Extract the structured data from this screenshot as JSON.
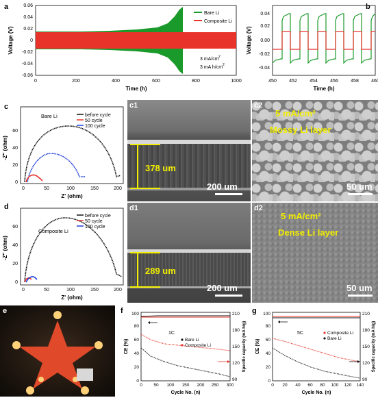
{
  "labels": {
    "a": "a",
    "b": "b",
    "c": "c",
    "c1": "c1",
    "c2": "c2",
    "d": "d",
    "d1": "d1",
    "d2": "d2",
    "e": "e",
    "f": "f",
    "g": "g"
  },
  "panel_a": {
    "ylabel": "Voltage (V)",
    "xlabel": "Time (h)",
    "yticks": [
      "0.06",
      "0.04",
      "0.02",
      "0",
      "-0.02",
      "-0.04",
      "-0.06"
    ],
    "xticks": [
      "0",
      "200",
      "400",
      "600",
      "800",
      "1000"
    ],
    "legend": [
      "Bare Li",
      "Composite Li"
    ],
    "note1": "3 mA/cm",
    "note1_sup": "2",
    "note2": "3 mA h/cm",
    "note2_sup": "2"
  },
  "panel_b": {
    "ylabel": "Voltage (V)",
    "xlabel": "Time (h)",
    "yticks": [
      "0.04",
      "0.02",
      "0.00",
      "-0.02",
      "-0.04"
    ],
    "xticks": [
      "450",
      "452",
      "454",
      "456",
      "458",
      "460"
    ]
  },
  "panel_c": {
    "ylabel": "-Z'' (ohm)",
    "xlabel": "Z' (ohm)",
    "title": "Bare Li",
    "yticks": [
      "0",
      "20",
      "40",
      "60"
    ],
    "xticks": [
      "0",
      "50",
      "100",
      "150",
      "200"
    ],
    "legend": [
      "before cycle",
      "50 cycle",
      "100 cycle"
    ]
  },
  "panel_d": {
    "ylabel": "-Z'' (ohm)",
    "xlabel": "Z' (ohm)",
    "title": "Composite Li",
    "yticks": [
      "0",
      "20",
      "40",
      "60"
    ],
    "xticks": [
      "0",
      "50",
      "100",
      "150",
      "200"
    ],
    "legend": [
      "before cycle",
      "50 cycle",
      "100 cycle"
    ]
  },
  "sem": {
    "c1_thickness": "378 um",
    "c1_scale": "200 um",
    "c2_text1": "5 mA/cm²",
    "c2_text2": "Mossy Li layer",
    "c2_scale": "50 um",
    "d1_thickness": "289 um",
    "d1_scale": "200 um",
    "d2_text1": "5 mA/cm²",
    "d2_text2": "Dense Li layer",
    "d2_scale": "50 um"
  },
  "panel_f": {
    "ylabel": "CE (%)",
    "ylabel2": "Specific capacity (mA h/g)",
    "xlabel": "Cycle No. (n)",
    "rate": "1C",
    "yticks": [
      "0",
      "20",
      "40",
      "60",
      "80",
      "100"
    ],
    "y2ticks": [
      "210",
      "180",
      "150",
      "120",
      "90"
    ],
    "xticks": [
      "0",
      "50",
      "100",
      "150",
      "200",
      "250",
      "300"
    ],
    "legend": [
      "Bare Li",
      "Composite Li"
    ]
  },
  "panel_g": {
    "ylabel": "CE (%)",
    "ylabel2": "Specific capacity (mA h/g)",
    "xlabel": "Cycle No. (n)",
    "rate": "5C",
    "yticks": [
      "0",
      "20",
      "40",
      "60",
      "80",
      "100"
    ],
    "y2ticks": [
      "210",
      "180",
      "150",
      "120",
      "90"
    ],
    "xticks": [
      "0",
      "20",
      "40",
      "60",
      "80",
      "100",
      "120",
      "140"
    ],
    "legend": [
      "Composite Li",
      "Bare Li"
    ]
  },
  "colors": {
    "bare": "#1a9a2a",
    "composite": "#e8332a",
    "blue": "#1f3fd8",
    "yellow": "#f2ee00"
  }
}
